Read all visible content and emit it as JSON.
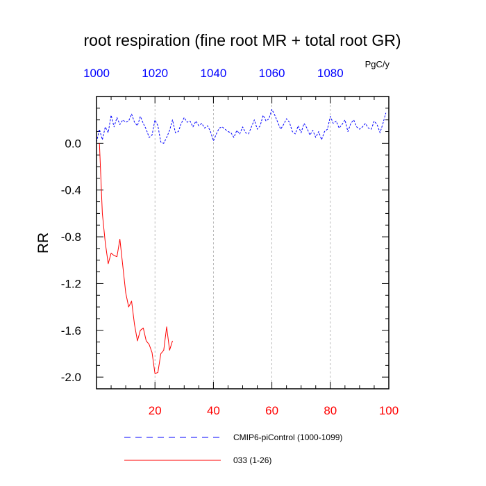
{
  "chart_data": {
    "type": "line",
    "title": "root respiration (fine root MR + total root GR)",
    "ylabel": "RR",
    "top_axis_units": "PgC/y",
    "xlim": [
      0,
      100
    ],
    "ylim": [
      -2.1,
      0.4
    ],
    "grid": "vertical dashed lines at x = 20, 40, 60, 80",
    "bottom_ticks": [
      "20",
      "40",
      "60",
      "80",
      "100"
    ],
    "bottom_tick_values": [
      20,
      40,
      60,
      80,
      100
    ],
    "top_ticks": [
      "1000",
      "1020",
      "1040",
      "1060",
      "1080"
    ],
    "top_tick_values": [
      1000,
      1020,
      1040,
      1060,
      1080
    ],
    "y_ticks": [
      "0.0",
      "-0.4",
      "-0.8",
      "-1.2",
      "-1.6",
      "-2.0"
    ],
    "y_tick_values": [
      0.0,
      -0.4,
      -0.8,
      -1.2,
      -1.6,
      -2.0
    ],
    "bottom_axis_color": "#ff0000",
    "top_axis_color": "#0000ff",
    "legend_position": "bottom",
    "series": [
      {
        "name": "CMIP6-piControl (1000-1099)",
        "axis": "top",
        "color": "#0000ff",
        "dash": "dashed",
        "x_start": 1000,
        "values": [
          0.01,
          0.12,
          0.03,
          0.14,
          0.09,
          0.24,
          0.14,
          0.22,
          0.16,
          0.2,
          0.18,
          0.19,
          0.25,
          0.18,
          0.15,
          0.23,
          0.17,
          0.12,
          0.05,
          0.07,
          0.2,
          0.15,
          0.01,
          0.0,
          0.05,
          0.11,
          0.2,
          0.09,
          0.1,
          0.17,
          0.22,
          0.18,
          0.19,
          0.14,
          0.19,
          0.15,
          0.17,
          0.13,
          0.15,
          0.1,
          0.02,
          0.08,
          0.13,
          0.14,
          0.12,
          0.1,
          0.09,
          0.05,
          0.11,
          0.08,
          0.14,
          0.09,
          0.08,
          0.14,
          0.2,
          0.12,
          0.15,
          0.24,
          0.19,
          0.21,
          0.29,
          0.24,
          0.18,
          0.12,
          0.16,
          0.21,
          0.18,
          0.1,
          0.08,
          0.15,
          0.09,
          0.17,
          0.13,
          0.07,
          0.11,
          0.05,
          0.1,
          0.03,
          0.1,
          0.12,
          0.23,
          0.17,
          0.19,
          0.13,
          0.16,
          0.2,
          0.1,
          0.17,
          0.2,
          0.14,
          0.12,
          0.14,
          0.17,
          0.13,
          0.12,
          0.19,
          0.16,
          0.09,
          0.17,
          0.26
        ]
      },
      {
        "name": "033 (1-26)",
        "axis": "bottom",
        "color": "#ff0000",
        "dash": "solid",
        "x_start": 1,
        "values": [
          0.0,
          -0.6,
          -0.85,
          -1.03,
          -0.94,
          -0.96,
          -0.97,
          -0.82,
          -1.05,
          -1.28,
          -1.4,
          -1.35,
          -1.55,
          -1.69,
          -1.6,
          -1.58,
          -1.69,
          -1.72,
          -1.79,
          -1.97,
          -1.96,
          -1.8,
          -1.77,
          -1.57,
          -1.77,
          -1.69
        ]
      }
    ]
  }
}
